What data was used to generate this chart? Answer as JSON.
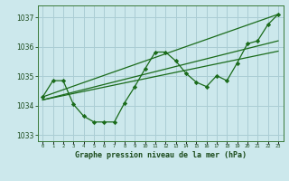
{
  "title": "Graphe pression niveau de la mer (hPa)",
  "bg_color": "#cce8ec",
  "grid_color": "#aacdd4",
  "line_color": "#1a6b1a",
  "tick_color": "#1a4a1a",
  "ylim": [
    1032.8,
    1037.4
  ],
  "xlim": [
    -0.5,
    23.5
  ],
  "yticks": [
    1033,
    1034,
    1035,
    1036,
    1037
  ],
  "x": [
    0,
    1,
    2,
    3,
    4,
    5,
    6,
    7,
    8,
    9,
    10,
    11,
    12,
    13,
    14,
    15,
    16,
    17,
    18,
    19,
    20,
    21,
    22,
    23
  ],
  "y_main": [
    1034.3,
    1034.85,
    1034.85,
    1034.05,
    1033.65,
    1033.45,
    1033.45,
    1033.45,
    1034.1,
    1034.65,
    1035.25,
    1035.82,
    1035.82,
    1035.52,
    1035.1,
    1034.8,
    1034.65,
    1035.02,
    1034.85,
    1035.45,
    1036.1,
    1036.2,
    1036.75,
    1037.1
  ],
  "trend1_x": [
    0,
    23
  ],
  "trend1_y": [
    1034.2,
    1035.85
  ],
  "trend2_x": [
    0,
    23
  ],
  "trend2_y": [
    1034.2,
    1036.2
  ],
  "trend3_x": [
    0,
    23
  ],
  "trend3_y": [
    1034.3,
    1037.1
  ]
}
